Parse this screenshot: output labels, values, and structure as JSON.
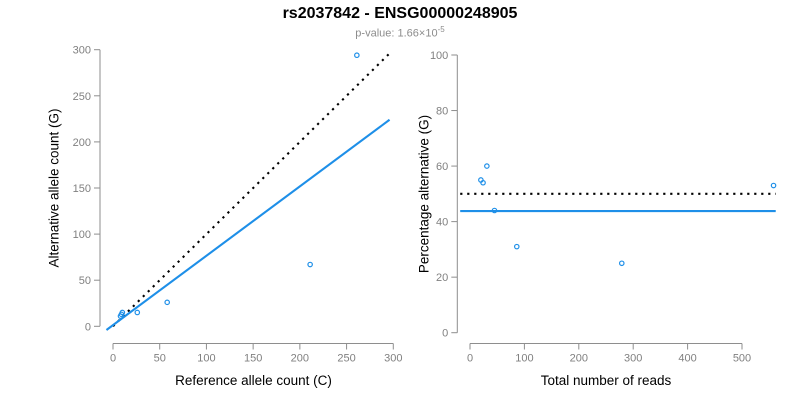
{
  "header": {
    "title": "rs2037842 - ENSG00000248905",
    "pvalue_label": "p-value: 1.66×10",
    "pvalue_exponent": "-5"
  },
  "colors": {
    "accent_blue": "#1E8FE8",
    "identity_black": "#000000",
    "axis_gray": "#8e8e8e",
    "tick_label_gray": "#808080",
    "subtitle_gray": "#8c8c8c"
  },
  "chart_data": [
    {
      "type": "scatter",
      "name": "allele-counts-scatter",
      "xlabel": "Reference allele count (C)",
      "ylabel": "Alternative allele count (G)",
      "xlim": [
        0,
        300
      ],
      "ylim": [
        0,
        300
      ],
      "xticks": [
        0,
        50,
        100,
        150,
        200,
        250,
        300
      ],
      "yticks": [
        0,
        50,
        100,
        150,
        200,
        250,
        300
      ],
      "grid": false,
      "legend": "none",
      "points": [
        [
          8,
          11
        ],
        [
          9,
          13
        ],
        [
          10,
          15
        ],
        [
          26,
          15
        ],
        [
          58,
          26
        ],
        [
          211,
          67
        ],
        [
          261,
          294
        ]
      ],
      "lines": [
        {
          "name": "identity-line",
          "style": "dotted",
          "color": "#000000",
          "coords": [
            [
              0,
              0
            ],
            [
              295,
              295
            ]
          ]
        },
        {
          "name": "fit-line",
          "style": "solid",
          "color": "#1E8FE8",
          "coords": [
            [
              -7,
              -4
            ],
            [
              296,
              224
            ]
          ]
        }
      ]
    },
    {
      "type": "scatter",
      "name": "percentage-vs-reads-scatter",
      "xlabel": "Total number of reads",
      "ylabel": "Percentage alternative (G)",
      "xlim": [
        0,
        500
      ],
      "ylim": [
        0,
        100
      ],
      "xticks": [
        0,
        100,
        200,
        300,
        400,
        500
      ],
      "yticks": [
        0,
        20,
        40,
        60,
        80,
        100
      ],
      "grid": false,
      "legend": "none",
      "points": [
        [
          20,
          55
        ],
        [
          24,
          54
        ],
        [
          31,
          60
        ],
        [
          45,
          44
        ],
        [
          86,
          31
        ],
        [
          279,
          25
        ],
        [
          558,
          53
        ]
      ],
      "lines": [
        {
          "name": "expected-ratio-line",
          "style": "dotted",
          "color": "#000000",
          "coords": [
            [
              -18,
              50
            ],
            [
              562,
              50
            ]
          ]
        },
        {
          "name": "fitted-ratio-line",
          "style": "solid",
          "color": "#1E8FE8",
          "coords": [
            [
              -18,
              43.8
            ],
            [
              562,
              43.8
            ]
          ]
        }
      ]
    }
  ]
}
